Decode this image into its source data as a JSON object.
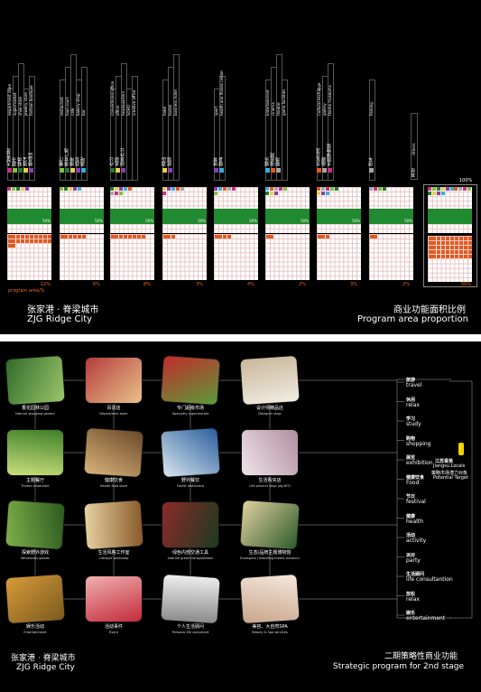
{
  "top": {
    "title_cn": "张家港 · 脊梁城市",
    "title_en": "ZJG Ridge City",
    "heading_cn": "商业功能面积比例",
    "heading_en": "Program area proportion",
    "axis_label": "program area/%",
    "total_label": "100%",
    "total_pct": "50%",
    "groups": [
      {
        "labels": [
          "department store",
          "supermarket",
          "shoe store",
          "jewelry store",
          "fashion boutique"
        ],
        "cn": [
          "大型百货",
          "超市",
          "鞋类",
          "珠宝",
          "精品店"
        ],
        "pct": "22%",
        "gpct": "50%"
      },
      {
        "labels": [
          "restaurant",
          "food court",
          "cafe",
          "bakery shop",
          "bar"
        ],
        "cn": [
          "餐厅",
          "美食广场",
          "咖啡",
          "面包",
          "酒吧"
        ],
        "pct": "6%",
        "gpct": "50%"
      },
      {
        "labels": [
          "conventional office",
          "office",
          "headquarters",
          "SOHO",
          "creative office"
        ],
        "cn": [
          "办公",
          "总部",
          "创意办公"
        ],
        "pct": "8%",
        "gpct": "50%"
      },
      {
        "labels": [
          "hotel",
          "hostel",
          "business hotel"
        ],
        "cn": [
          "酒店",
          "旅馆"
        ],
        "pct": "3%",
        "gpct": "50%"
      },
      {
        "labels": [
          "sport",
          "health and fitness center"
        ],
        "cn": [
          "体育",
          "健身"
        ],
        "pct": "4%",
        "gpct": "50%"
      },
      {
        "labels": [
          "Entertainment",
          "cinema",
          "theatre",
          "game facilities"
        ],
        "cn": [
          "娱乐",
          "电影院",
          "剧场"
        ],
        "pct": "2%",
        "gpct": "50%"
      },
      {
        "labels": [
          "Cultural exchange",
          "gallery",
          "theme museums"
        ],
        "cn": [
          "文化交流",
          "画廊",
          "主题博物馆"
        ],
        "pct": "3%",
        "gpct": "50%"
      },
      {
        "labels": [
          "Parking"
        ],
        "cn": [
          "停车"
        ],
        "pct": "2%",
        "gpct": "50%"
      },
      {
        "labels": [
          "Others"
        ],
        "cn": [
          "其他"
        ],
        "pct": "",
        "gpct": ""
      }
    ]
  },
  "bottom": {
    "title_cn": "张家港 · 脊梁城市",
    "title_en": "ZJG Ridge City",
    "heading_cn": "二期策略性商业功能",
    "heading_en": "Strategic program for 2nd stage",
    "target_cn": "江苏青英",
    "target_en": "Jiangsu Locals",
    "target2_cn": "策略市场潜力对象",
    "target2_en": "Potential Target",
    "tags": [
      {
        "cn": "旅游",
        "en": "travel"
      },
      {
        "cn": "休闲",
        "en": "relax"
      },
      {
        "cn": "学习",
        "en": "study"
      },
      {
        "cn": "购物",
        "en": "shopping"
      },
      {
        "cn": "展览",
        "en": "exhibition"
      },
      {
        "cn": "健康饮食",
        "en": "Food"
      },
      {
        "cn": "节日",
        "en": "festival"
      },
      {
        "cn": "健康",
        "en": "health"
      },
      {
        "cn": "活动",
        "en": "activity"
      },
      {
        "cn": "派对",
        "en": "party"
      },
      {
        "cn": "生活顾问",
        "en": "life consultantion"
      },
      {
        "cn": "放松",
        "en": "relax"
      },
      {
        "cn": "娱乐",
        "en": "entertainment"
      }
    ],
    "photos": [
      {
        "cn": "香花园林公园",
        "en": "Natural shopping garden",
        "c1": "#2f6b2a",
        "c2": "#9bc56a"
      },
      {
        "cn": "百货店",
        "en": "Department store",
        "c1": "#b43c3c",
        "c2": "#e9c28a"
      },
      {
        "cn": "专门超级市场",
        "en": "Speciality supermarket",
        "c1": "#c22b2b",
        "c2": "#5a9c3a"
      },
      {
        "cn": "设计师精品店",
        "en": "Designer shop",
        "c1": "#c9b79a",
        "c2": "#f1ece2"
      },
      {
        "cn": "主题餐厅",
        "en": "Theme restaurant",
        "c1": "#3f7f2a",
        "c2": "#c9e07a"
      },
      {
        "cn": "健康饮食",
        "en": "Health food store",
        "c1": "#6b4a2a",
        "c2": "#d9b27a"
      },
      {
        "cn": "野外餐饮",
        "en": "Forest restaurant",
        "c1": "#2a5e9c",
        "c2": "#d8e6f0"
      },
      {
        "cn": "生活购买店",
        "en": "Life product shop (eg.DIY)",
        "c1": "#b18ea0",
        "c2": "#efe4e8"
      },
      {
        "cn": "探索野外游戏",
        "en": "Wilderness games",
        "c1": "#2c5a1e",
        "c2": "#7fb04a"
      },
      {
        "cn": "生活风格工作室",
        "en": "Lifestyle workshop",
        "c1": "#8a5a2a",
        "c2": "#e6d2a2"
      },
      {
        "cn": "绿色内部交通工具",
        "en": "Internal green transportation",
        "c1": "#1e3a1e",
        "c2": "#8a2a2a"
      },
      {
        "cn": "生态/品牌主题博物馆",
        "en": "Ecological / Branding theme museum",
        "c1": "#2e5a2a",
        "c2": "#e0d0a0"
      },
      {
        "cn": "娱乐活动",
        "en": "Entertainment",
        "c1": "#7a5a1e",
        "c2": "#d89a3a"
      },
      {
        "cn": "活动事件",
        "en": "Event",
        "c1": "#c22b3a",
        "c2": "#f0b0b0"
      },
      {
        "cn": "个人生活顾问",
        "en": "Personal life consultant",
        "c1": "#8a8a8a",
        "c2": "#efefef"
      },
      {
        "cn": "美容、大自然SPA",
        "en": "Beauty & Spa services",
        "c1": "#c8a58a",
        "c2": "#f5e7dc"
      }
    ]
  }
}
